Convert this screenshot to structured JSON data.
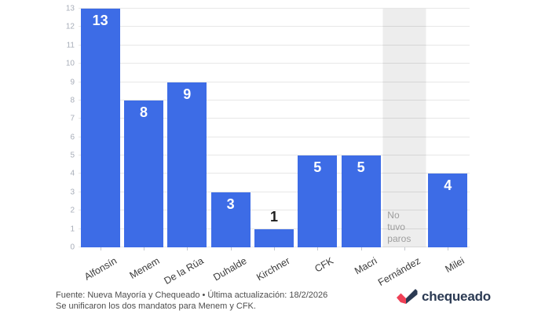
{
  "chart_data": {
    "type": "bar",
    "title": "",
    "categories": [
      "Alfonsín",
      "Menem",
      "De la Rúa",
      "Duhalde",
      "Kirchner",
      "CFK",
      "Macri",
      "Fernández",
      "Milei"
    ],
    "values": [
      13,
      8,
      9,
      3,
      1,
      5,
      5,
      null,
      4
    ],
    "value_labels": [
      "13",
      "8",
      "9",
      "3",
      "1",
      "5",
      "5",
      "",
      "4"
    ],
    "no_data": {
      "category": "Fernández",
      "label": "No tuvo paros"
    },
    "ylim": [
      0,
      13
    ],
    "yticks": [
      0,
      1,
      2,
      3,
      4,
      5,
      6,
      7,
      8,
      9,
      10,
      11,
      12,
      13
    ],
    "grid": true,
    "legend": "none",
    "bar_color": "#3d6ce6",
    "no_data_band_color": "#ededed",
    "value_label_inside_color": "#ffffff",
    "value_label_outside_color": "#1c1c1c"
  },
  "footer": {
    "source_line": "Fuente: Nueva Mayoría y Chequeado • Última actualización: 18/2/2026",
    "note_line": "Se unificaron los dos mandatos para Menem y CFK."
  },
  "logo": {
    "text": "chequeado",
    "icon": "check-icon",
    "navy": "#2b3a53",
    "red": "#ee4056"
  }
}
